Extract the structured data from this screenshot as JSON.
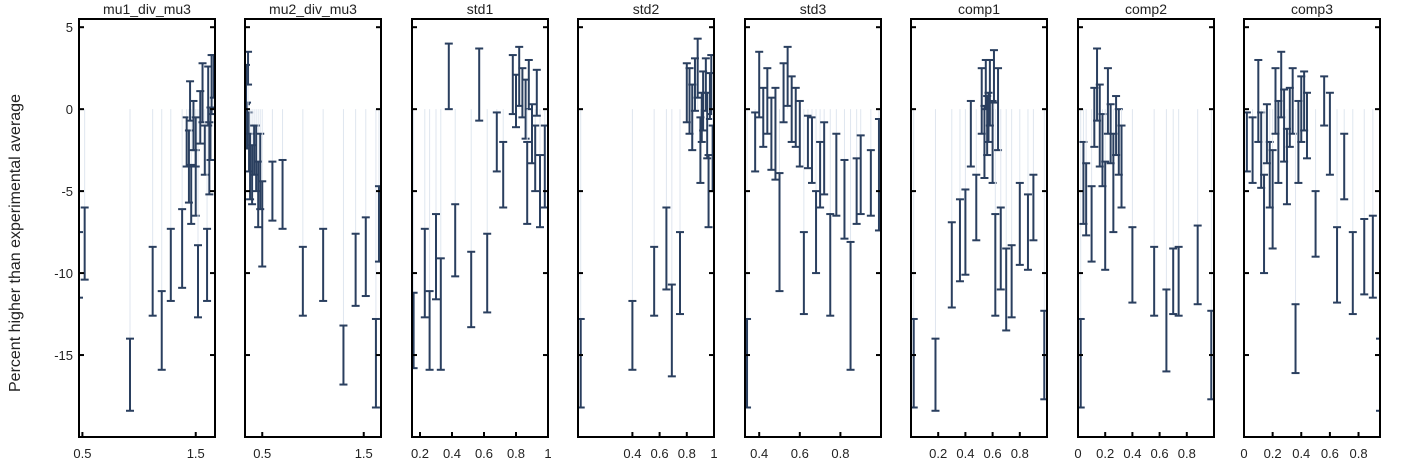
{
  "chart_data": {
    "type": "scatter",
    "error_bars": true,
    "ylabel": "Percent higher than experimental average",
    "yticks": [
      5,
      0,
      -5,
      -10,
      -15
    ],
    "ylim": [
      -20,
      5.5
    ],
    "colors": {
      "bar": "#2a3f5f",
      "stem": "#dfe6ef",
      "frame": "#000000"
    },
    "panels": [
      {
        "title": "mu1_div_mu3",
        "xlim": [
          0.47,
          1.67
        ],
        "xticks": [
          "0.5",
          "1.5"
        ],
        "xtick_values": [
          0.5,
          1.5
        ],
        "points": [
          [
            0.47,
            -9.5,
            2
          ],
          [
            0.52,
            -8.2,
            2.2
          ],
          [
            0.92,
            -16.2,
            2.2
          ],
          [
            1.12,
            -10.5,
            2.1
          ],
          [
            1.2,
            -13.5,
            2.4
          ],
          [
            1.28,
            -9.5,
            2.2
          ],
          [
            1.38,
            -8.5,
            2.4
          ],
          [
            1.42,
            -2,
            1.5
          ],
          [
            1.44,
            -3.5,
            2.2
          ],
          [
            1.46,
            -5.2,
            1.8
          ],
          [
            1.48,
            -1.0,
            1.5
          ],
          [
            1.5,
            -4.5,
            2.0
          ],
          [
            1.52,
            -10.5,
            2.2
          ],
          [
            1.54,
            -0.5,
            1.6
          ],
          [
            1.56,
            1.0,
            1.8
          ],
          [
            1.58,
            -2.5,
            1.5
          ],
          [
            1.6,
            -9.5,
            2.2
          ],
          [
            1.62,
            -3.0,
            2.2
          ],
          [
            1.64,
            1.5,
            1.8
          ],
          [
            1.66,
            2.0,
            1.3
          ],
          [
            1.5,
            -2.0,
            1.5
          ],
          [
            1.45,
            0.5,
            1.2
          ],
          [
            1.61,
            0.8,
            1.8
          ],
          [
            1.63,
            -1.5,
            1.6
          ]
        ]
      },
      {
        "title": "mu2_div_mu3",
        "xlim": [
          0.33,
          1.67
        ],
        "xticks": [
          "0.5",
          "1.5"
        ],
        "xtick_values": [
          0.5,
          1.5
        ],
        "points": [
          [
            0.34,
            1.5,
            1.2
          ],
          [
            0.35,
            -1.0,
            1.4
          ],
          [
            0.37,
            -2.0,
            1.8
          ],
          [
            0.38,
            -3.5,
            2.0
          ],
          [
            0.4,
            -4.0,
            1.8
          ],
          [
            0.42,
            -2.5,
            1.5
          ],
          [
            0.44,
            -3.0,
            2.0
          ],
          [
            0.46,
            -5.2,
            2.0
          ],
          [
            0.48,
            -3.8,
            2.3
          ],
          [
            0.5,
            -7.0,
            2.6
          ],
          [
            0.6,
            -5.0,
            1.8
          ],
          [
            0.7,
            -5.2,
            2.1
          ],
          [
            0.9,
            -10.5,
            2.1
          ],
          [
            1.1,
            -9.5,
            2.2
          ],
          [
            1.3,
            -15.0,
            1.8
          ],
          [
            1.42,
            -9.8,
            2.2
          ],
          [
            1.52,
            -9.0,
            2.4
          ],
          [
            1.62,
            -15.5,
            2.7
          ],
          [
            1.65,
            -7.0,
            2.3
          ],
          [
            0.36,
            2.5,
            1.0
          ]
        ]
      },
      {
        "title": "std1",
        "xlim": [
          0.15,
          1.0
        ],
        "xticks": [
          "0.2",
          "0.4",
          "0.6",
          "0.8",
          "1"
        ],
        "xtick_values": [
          0.2,
          0.4,
          0.6,
          0.8,
          1.0
        ],
        "points": [
          [
            0.16,
            -13.5,
            2.3
          ],
          [
            0.23,
            -10.0,
            2.7
          ],
          [
            0.26,
            -13.5,
            2.4
          ],
          [
            0.3,
            -9.0,
            2.6
          ],
          [
            0.33,
            -12.5,
            3.4
          ],
          [
            0.38,
            2.0,
            2.0
          ],
          [
            0.42,
            -8.0,
            2.2
          ],
          [
            0.52,
            -11.0,
            2.3
          ],
          [
            0.57,
            1.5,
            2.2
          ],
          [
            0.62,
            -10.0,
            2.4
          ],
          [
            0.68,
            -2.0,
            1.8
          ],
          [
            0.72,
            -4.0,
            2.0
          ],
          [
            0.78,
            1.5,
            1.8
          ],
          [
            0.8,
            0.5,
            1.6
          ],
          [
            0.82,
            2.0,
            1.8
          ],
          [
            0.84,
            1.0,
            1.5
          ],
          [
            0.86,
            0.0,
            1.8
          ],
          [
            0.88,
            1.5,
            1.5
          ],
          [
            0.9,
            -1.5,
            1.8
          ],
          [
            0.92,
            -3.0,
            2.0
          ],
          [
            0.95,
            -5.0,
            2.2
          ],
          [
            0.98,
            -3.5,
            2.5
          ],
          [
            0.87,
            -4.5,
            2.5
          ],
          [
            0.93,
            1.0,
            1.4
          ]
        ]
      },
      {
        "title": "std2",
        "xlim": [
          0.0,
          1.0
        ],
        "xticks": [
          "0.4",
          "0.6",
          "0.8",
          "1"
        ],
        "xtick_values": [
          0.4,
          0.6,
          0.8,
          1.0
        ],
        "points": [
          [
            0.02,
            -15.5,
            2.7
          ],
          [
            0.4,
            -13.8,
            2.1
          ],
          [
            0.56,
            -10.5,
            2.1
          ],
          [
            0.65,
            -8.5,
            2.5
          ],
          [
            0.69,
            -13.5,
            2.8
          ],
          [
            0.75,
            -10.0,
            2.5
          ],
          [
            0.8,
            1.0,
            1.8
          ],
          [
            0.82,
            0.5,
            2.0
          ],
          [
            0.84,
            -0.5,
            2.0
          ],
          [
            0.86,
            1.5,
            1.6
          ],
          [
            0.88,
            2.5,
            1.8
          ],
          [
            0.9,
            -2.5,
            2.0
          ],
          [
            0.92,
            0.5,
            1.8
          ],
          [
            0.94,
            1.5,
            1.6
          ],
          [
            0.95,
            -1.0,
            2.0
          ],
          [
            0.96,
            -5.0,
            2.2
          ],
          [
            0.97,
            0.8,
            1.4
          ],
          [
            0.98,
            1.5,
            1.8
          ],
          [
            0.99,
            -3.0,
            2.0
          ],
          [
            0.91,
            -0.5,
            1.5
          ]
        ]
      },
      {
        "title": "std3",
        "xlim": [
          0.33,
          1.0
        ],
        "xticks": [
          "0.4",
          "0.6",
          "0.8"
        ],
        "xtick_values": [
          0.4,
          0.6,
          0.8
        ],
        "points": [
          [
            0.34,
            -15.5,
            2.7
          ],
          [
            0.38,
            -2.0,
            1.8
          ],
          [
            0.4,
            1.5,
            2.0
          ],
          [
            0.42,
            -0.5,
            1.8
          ],
          [
            0.44,
            0.5,
            2.0
          ],
          [
            0.46,
            -1.5,
            2.2
          ],
          [
            0.48,
            -1.5,
            2.8
          ],
          [
            0.5,
            -7.5,
            3.6
          ],
          [
            0.52,
            1.0,
            1.8
          ],
          [
            0.54,
            2.0,
            1.8
          ],
          [
            0.56,
            0.0,
            2.0
          ],
          [
            0.58,
            -0.5,
            1.8
          ],
          [
            0.6,
            -1.5,
            2.0
          ],
          [
            0.62,
            -10.0,
            2.5
          ],
          [
            0.64,
            -2.0,
            1.6
          ],
          [
            0.66,
            -2.5,
            2.0
          ],
          [
            0.68,
            -7.5,
            2.5
          ],
          [
            0.7,
            -4.0,
            2.0
          ],
          [
            0.72,
            -3.0,
            2.2
          ],
          [
            0.75,
            -9.5,
            3.1
          ],
          [
            0.78,
            -4.0,
            2.5
          ],
          [
            0.82,
            -5.5,
            2.4
          ],
          [
            0.85,
            -12.0,
            3.9
          ],
          [
            0.88,
            -5.0,
            2.0
          ],
          [
            0.9,
            -4.0,
            2.4
          ],
          [
            0.95,
            -4.5,
            2.0
          ],
          [
            0.99,
            -4.0,
            3.4
          ]
        ]
      },
      {
        "title": "comp1",
        "xlim": [
          0.0,
          1.0
        ],
        "xticks": [
          "0.2",
          "0.4",
          "0.6",
          "0.8"
        ],
        "xtick_values": [
          0.2,
          0.4,
          0.6,
          0.8
        ],
        "points": [
          [
            0.02,
            -15.5,
            2.7
          ],
          [
            0.18,
            -16.2,
            2.2
          ],
          [
            0.3,
            -9.5,
            2.6
          ],
          [
            0.36,
            -8.0,
            2.5
          ],
          [
            0.4,
            -7.5,
            2.6
          ],
          [
            0.44,
            -1.5,
            2.0
          ],
          [
            0.48,
            -6.0,
            2.0
          ],
          [
            0.52,
            0.5,
            2.0
          ],
          [
            0.54,
            -2.0,
            2.2
          ],
          [
            0.56,
            -1.0,
            1.8
          ],
          [
            0.58,
            1.0,
            2.0
          ],
          [
            0.6,
            -2.0,
            2.5
          ],
          [
            0.62,
            -9.5,
            3.1
          ],
          [
            0.64,
            0.0,
            2.5
          ],
          [
            0.66,
            -8.5,
            2.5
          ],
          [
            0.7,
            -11.0,
            2.5
          ],
          [
            0.74,
            -10.5,
            2.2
          ],
          [
            0.8,
            -7.0,
            2.5
          ],
          [
            0.86,
            -7.5,
            2.3
          ],
          [
            0.9,
            -6.0,
            2.0
          ],
          [
            0.98,
            -15.0,
            2.7
          ],
          [
            0.55,
            1.5,
            1.5
          ],
          [
            0.61,
            2.0,
            1.6
          ],
          [
            0.57,
            -0.5,
            1.5
          ]
        ]
      },
      {
        "title": "comp2",
        "xlim": [
          0.0,
          1.0
        ],
        "xticks": [
          "0",
          "0.2",
          "0.4",
          "0.6",
          "0.8"
        ],
        "xtick_values": [
          0.0,
          0.2,
          0.4,
          0.6,
          0.8
        ],
        "points": [
          [
            0.02,
            -15.5,
            2.7
          ],
          [
            0.04,
            -4.5,
            2.5
          ],
          [
            0.06,
            -5.5,
            2.2
          ],
          [
            0.1,
            -7.0,
            2.3
          ],
          [
            0.12,
            -0.5,
            1.8
          ],
          [
            0.14,
            1.5,
            2.2
          ],
          [
            0.16,
            -1.0,
            2.5
          ],
          [
            0.18,
            -2.5,
            2.2
          ],
          [
            0.2,
            -6.5,
            3.3
          ],
          [
            0.22,
            0.5,
            2.0
          ],
          [
            0.24,
            -1.5,
            1.8
          ],
          [
            0.26,
            -4.5,
            3.0
          ],
          [
            0.28,
            -1.0,
            1.8
          ],
          [
            0.3,
            -2.0,
            2.0
          ],
          [
            0.32,
            -3.5,
            2.5
          ],
          [
            0.4,
            -9.5,
            2.3
          ],
          [
            0.56,
            -10.5,
            2.1
          ],
          [
            0.65,
            -13.5,
            2.5
          ],
          [
            0.7,
            -10.5,
            2.0
          ],
          [
            0.74,
            -10.5,
            2.1
          ],
          [
            0.88,
            -9.5,
            2.4
          ],
          [
            0.98,
            -15.0,
            2.7
          ]
        ]
      },
      {
        "title": "comp3",
        "xlim": [
          0.0,
          0.95
        ],
        "xticks": [
          "0",
          "0.2",
          "0.4",
          "0.6",
          "0.8"
        ],
        "xtick_values": [
          0.0,
          0.2,
          0.4,
          0.6,
          0.8
        ],
        "points": [
          [
            0.02,
            -2.0,
            1.8
          ],
          [
            0.06,
            -2.5,
            2.0
          ],
          [
            0.1,
            0.5,
            2.5
          ],
          [
            0.12,
            -2.5,
            2.3
          ],
          [
            0.14,
            -7.0,
            3.0
          ],
          [
            0.16,
            -1.5,
            1.8
          ],
          [
            0.18,
            -4.0,
            2.0
          ],
          [
            0.2,
            -5.5,
            3.0
          ],
          [
            0.22,
            0.5,
            2.0
          ],
          [
            0.24,
            -2.0,
            2.5
          ],
          [
            0.26,
            1.5,
            2.0
          ],
          [
            0.28,
            -1.0,
            2.2
          ],
          [
            0.3,
            -3.5,
            2.3
          ],
          [
            0.32,
            -0.5,
            1.8
          ],
          [
            0.34,
            0.5,
            2.0
          ],
          [
            0.36,
            -14.0,
            2.1
          ],
          [
            0.38,
            -2.0,
            2.5
          ],
          [
            0.4,
            0.0,
            2.0
          ],
          [
            0.42,
            0.5,
            1.8
          ],
          [
            0.44,
            -1.0,
            2.0
          ],
          [
            0.5,
            -7.0,
            2.0
          ],
          [
            0.56,
            0.5,
            1.5
          ],
          [
            0.6,
            -1.5,
            2.5
          ],
          [
            0.65,
            -9.5,
            2.3
          ],
          [
            0.7,
            -3.5,
            2.0
          ],
          [
            0.76,
            -10.0,
            2.5
          ],
          [
            0.84,
            -9.0,
            2.3
          ],
          [
            0.9,
            -9.0,
            2.5
          ],
          [
            0.95,
            -16.2,
            2.2
          ]
        ]
      }
    ]
  }
}
